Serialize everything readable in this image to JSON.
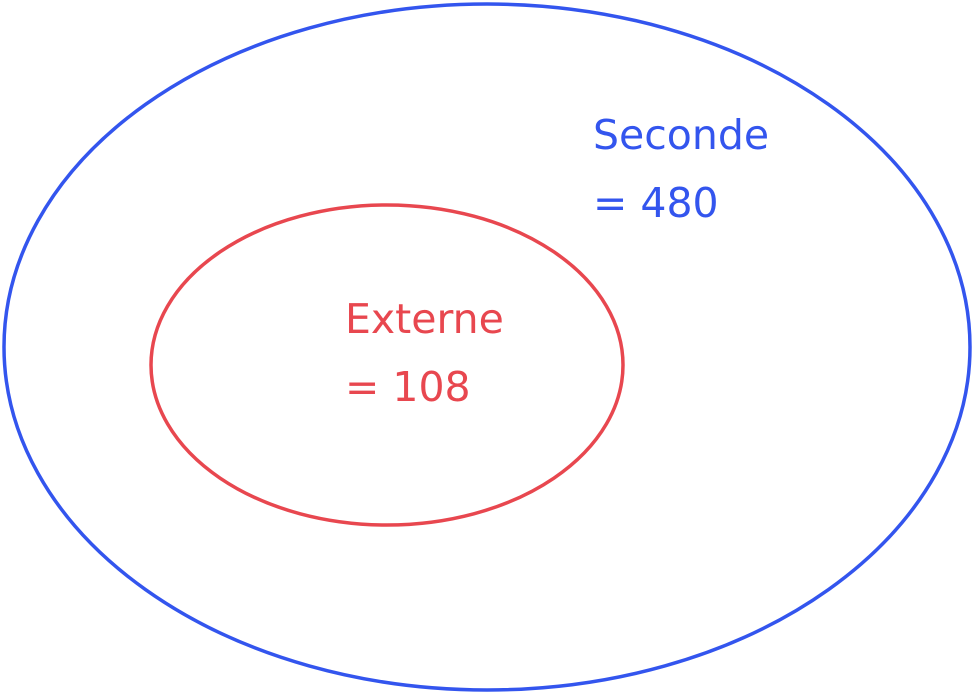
{
  "diagram": {
    "outer_set": {
      "label": "Seconde",
      "value_text": "= 480",
      "color": "#3355ee"
    },
    "inner_set": {
      "label": "Externe",
      "value_text": "= 108",
      "color": "#e8474f"
    }
  }
}
